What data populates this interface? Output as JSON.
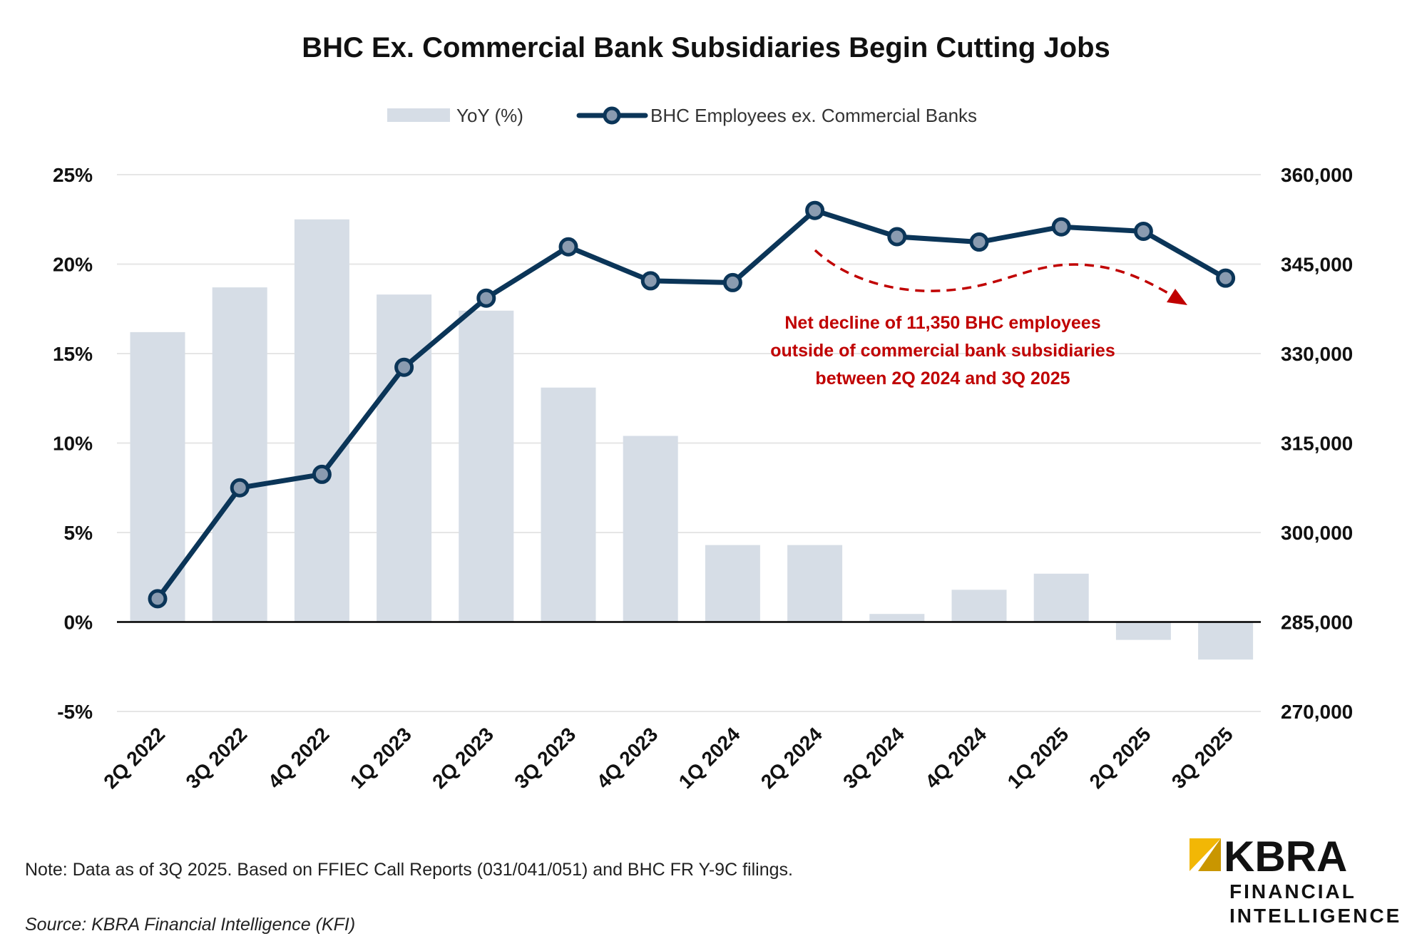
{
  "chart_data": {
    "type": "bar+line",
    "title": "BHC Ex. Commercial Bank Subsidiaries Begin Cutting Jobs",
    "categories": [
      "2Q 2022",
      "3Q 2022",
      "4Q 2022",
      "1Q 2023",
      "2Q 2023",
      "3Q 2023",
      "4Q 2023",
      "1Q 2024",
      "2Q 2024",
      "3Q 2024",
      "4Q 2024",
      "1Q 2025",
      "2Q 2025",
      "3Q 2025"
    ],
    "series": [
      {
        "name": "YoY (%)",
        "type": "bar",
        "axis": "left",
        "color": "#D6DDE6",
        "values": [
          16.2,
          18.7,
          22.5,
          18.3,
          17.4,
          13.1,
          10.4,
          4.3,
          4.3,
          0.45,
          1.8,
          2.7,
          -1.0,
          -2.1
        ]
      },
      {
        "name": "BHC Employees ex. Commercial Banks",
        "type": "line",
        "axis": "right",
        "color": "#0B3558",
        "marker_fill": "#8A9BB0",
        "values": [
          288900,
          307500,
          309750,
          327700,
          339300,
          347900,
          342200,
          341900,
          354000,
          349600,
          348700,
          351250,
          350500,
          342650
        ]
      }
    ],
    "left_axis": {
      "ylim": [
        -5,
        25
      ],
      "ticks": [
        "-5%",
        "0%",
        "5%",
        "10%",
        "15%",
        "20%",
        "25%"
      ],
      "tick_values": [
        -5,
        0,
        5,
        10,
        15,
        20,
        25
      ]
    },
    "right_axis": {
      "ylim": [
        270000,
        360000
      ],
      "ticks": [
        "270,000",
        "285,000",
        "300,000",
        "315,000",
        "330,000",
        "345,000",
        "360,000"
      ]
    },
    "legend_placement": "top-center",
    "grid": true,
    "annotation": {
      "lines": [
        "Net decline of 11,350 BHC employees",
        "outside of commercial bank subsidiaries",
        "between 2Q 2024 and 3Q 2025"
      ],
      "color": "#C00000"
    }
  },
  "footer": {
    "note": "Note: Data as of 3Q 2025. Based on FFIEC Call Reports (031/041/051) and BHC FR Y-9C filings.",
    "source": "Source: KBRA Financial Intelligence (KFI)"
  },
  "logo": {
    "brand": "KBRA",
    "line1": "FINANCIAL",
    "line2": "INTELLIGENCE",
    "accent": "#F2B705"
  }
}
